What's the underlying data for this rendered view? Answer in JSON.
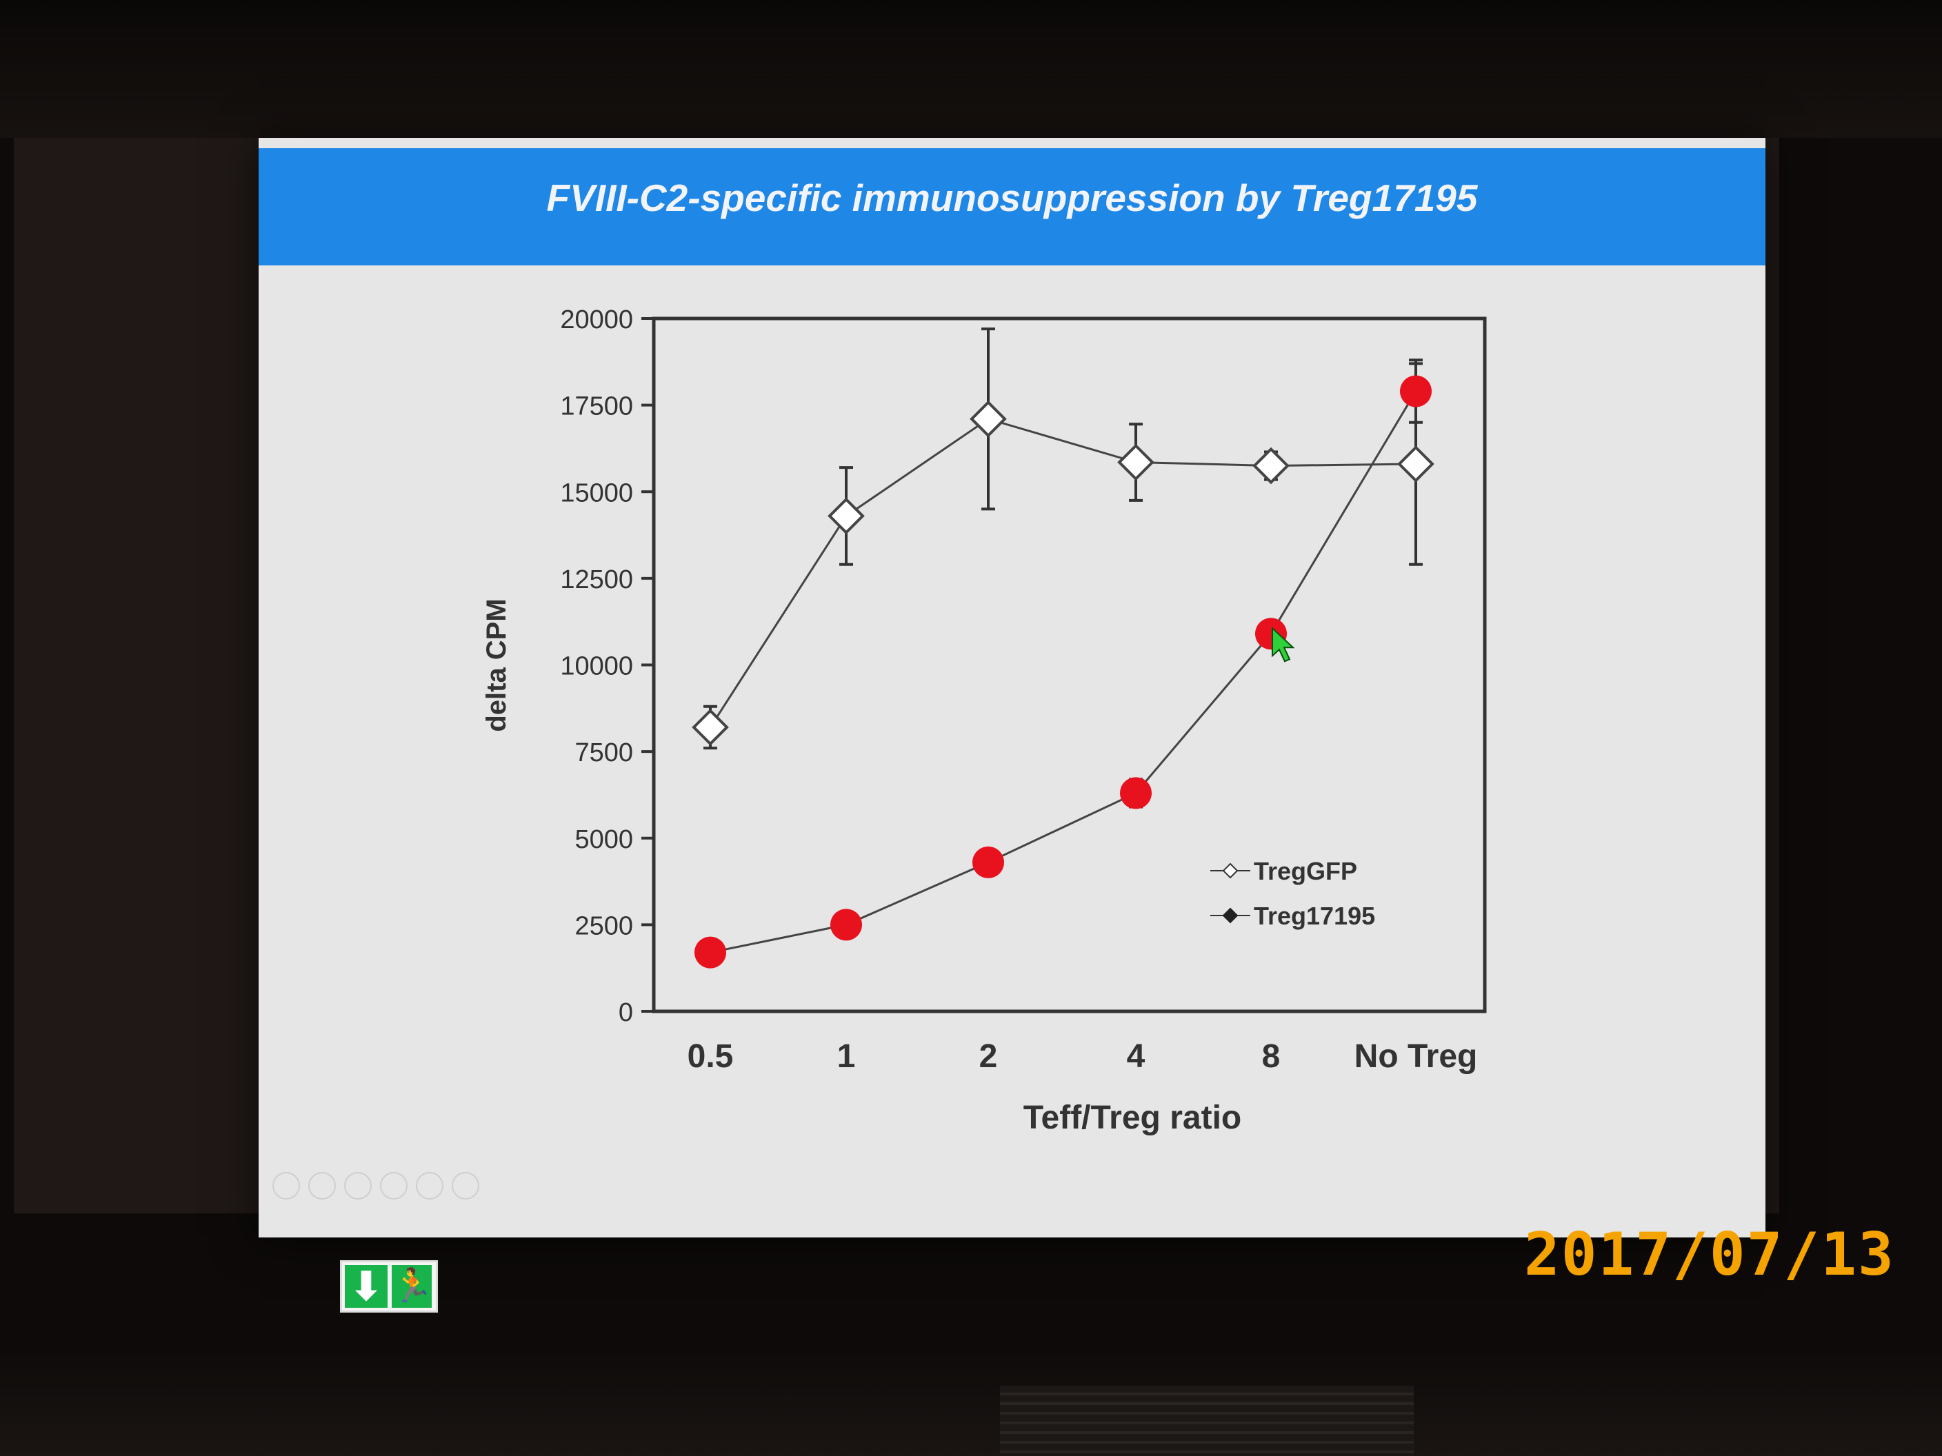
{
  "slide": {
    "title": "FVIII-C2-specific immunosuppression by Treg17195"
  },
  "chart_data": {
    "type": "line",
    "title": "",
    "xlabel": "Teff/Treg ratio",
    "ylabel": "delta CPM",
    "categories": [
      "0.5",
      "1",
      "2",
      "4",
      "8",
      "No Treg"
    ],
    "y_ticks": [
      "0",
      "2500",
      "5000",
      "7500",
      "10000",
      "12500",
      "15000",
      "17500",
      "20000"
    ],
    "ylim": [
      0,
      20000
    ],
    "grid": false,
    "legend_position": "lower-right",
    "series": [
      {
        "name": "TregGFP",
        "values": [
          8200,
          14300,
          17100,
          15850,
          15750,
          15800
        ],
        "errors": [
          600,
          1400,
          2600,
          1100,
          400,
          2900
        ],
        "marker": "open-diamond",
        "color": "#ffffff"
      },
      {
        "name": "Treg17195",
        "values": [
          1700,
          2500,
          4300,
          6300,
          10900,
          17900
        ],
        "errors": [
          0,
          0,
          0,
          400,
          0,
          900
        ],
        "marker": "filled-diamond",
        "color": "#e8121f"
      }
    ]
  },
  "overlay": {
    "date_stamp": "2017/07/13",
    "exit_sign_icon": "emergency-exit-sign"
  }
}
